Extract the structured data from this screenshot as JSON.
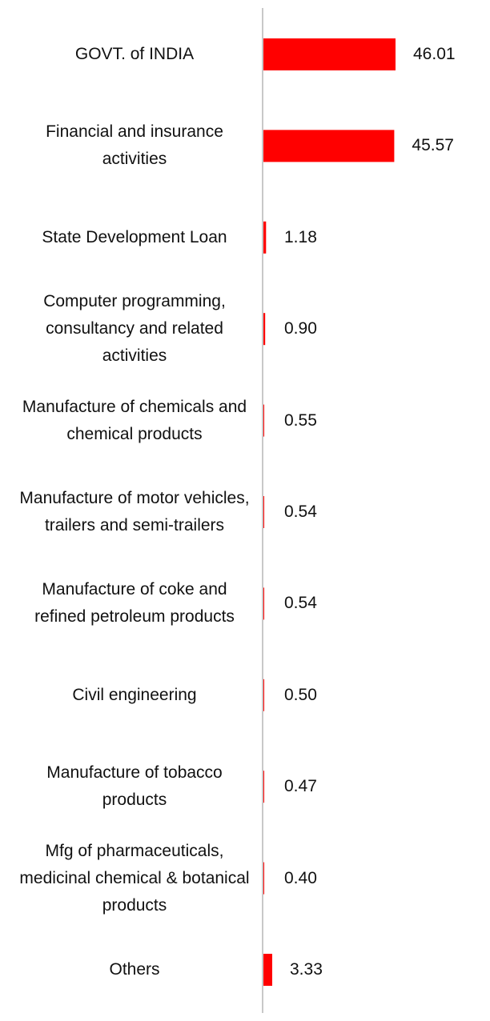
{
  "chart_data": {
    "type": "bar",
    "orientation": "horizontal",
    "categories": [
      "GOVT. of INDIA",
      "Financial and insurance activities",
      "State Development Loan",
      "Computer programming, consultancy and related activities",
      "Manufacture of chemicals and chemical products",
      "Manufacture of motor vehicles, trailers and semi-trailers",
      "Manufacture of coke and refined petroleum products",
      "Civil engineering",
      "Manufacture of tobacco products",
      "Mfg of pharmaceuticals, medicinal chemical & botanical products",
      "Others"
    ],
    "values": [
      46.01,
      45.57,
      1.18,
      0.9,
      0.55,
      0.54,
      0.54,
      0.5,
      0.47,
      0.4,
      3.33
    ],
    "value_labels": [
      "46.01",
      "45.57",
      "1.18",
      "0.90",
      "0.55",
      "0.54",
      "0.54",
      "0.50",
      "0.47",
      "0.40",
      "3.33"
    ],
    "title": "",
    "xlabel": "",
    "ylabel": "",
    "xlim": [
      0,
      46.01
    ],
    "grid": false,
    "legend": "none",
    "bar_color": "#ff0000",
    "axis_color": "#c8c8c8"
  }
}
